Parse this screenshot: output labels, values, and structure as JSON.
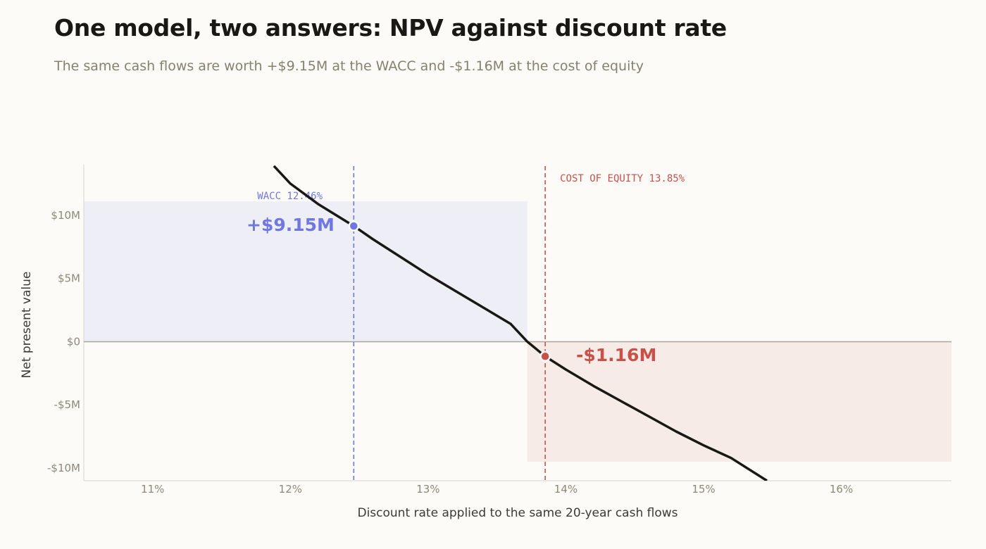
{
  "header": {
    "title": "One model, two answers: NPV against discount rate",
    "subtitle": "The same cash flows are worth +$9.15M at the WACC and -$1.16M at the cost of equity"
  },
  "colors": {
    "curve": "#1a1815",
    "wacc": "#6f77e0",
    "equity": "#c8524a",
    "positive_fill": "#eeeff6",
    "negative_fill": "#f7ebe7",
    "zero_line": "#aaa59b",
    "axis": "#d8d5cd"
  },
  "chart_data": {
    "type": "line",
    "xlabel": "Discount rate applied to the same 20-year cash flows",
    "ylabel": "Net present value",
    "xlim": [
      10.5,
      16.8
    ],
    "ylim": [
      -11,
      14
    ],
    "x_ticks": [
      11,
      12,
      13,
      14,
      15,
      16
    ],
    "x_tick_labels": [
      "11%",
      "12%",
      "13%",
      "14%",
      "15%",
      "16%"
    ],
    "y_ticks": [
      10,
      5,
      0,
      -5,
      -10
    ],
    "y_tick_labels": [
      "$10M",
      "$5M",
      "$0",
      "-$5M",
      "-$10M"
    ],
    "series": [
      {
        "x": [
          11.88,
          12.0,
          12.2,
          12.46,
          12.6,
          12.8,
          13.0,
          13.2,
          13.4,
          13.6,
          13.72,
          13.85,
          14.0,
          14.2,
          14.4,
          14.6,
          14.8,
          15.0,
          15.2,
          15.46
        ],
        "y": [
          13.9,
          12.5,
          10.9,
          9.15,
          8.1,
          6.7,
          5.3,
          4.0,
          2.7,
          1.4,
          0.0,
          -1.16,
          -2.2,
          -3.5,
          -4.7,
          -5.9,
          -7.1,
          -8.2,
          -9.2,
          -11.0
        ]
      }
    ],
    "markers": [
      {
        "name": "WACC",
        "x": 12.46,
        "y": 9.15,
        "line_label": "WACC  12.46%",
        "value_label": "+$9.15M"
      },
      {
        "name": "COST OF EQUITY",
        "x": 13.85,
        "y": -1.16,
        "line_label": "COST OF EQUITY  13.85%",
        "value_label": "-$1.16M"
      }
    ],
    "shaded_bands": [
      {
        "from_x": 10.5,
        "to_x": 13.72,
        "y": 11.1,
        "meaning": "positive"
      },
      {
        "from_x": 13.72,
        "to_x": 16.8,
        "y": -9.5,
        "meaning": "negative"
      }
    ]
  }
}
